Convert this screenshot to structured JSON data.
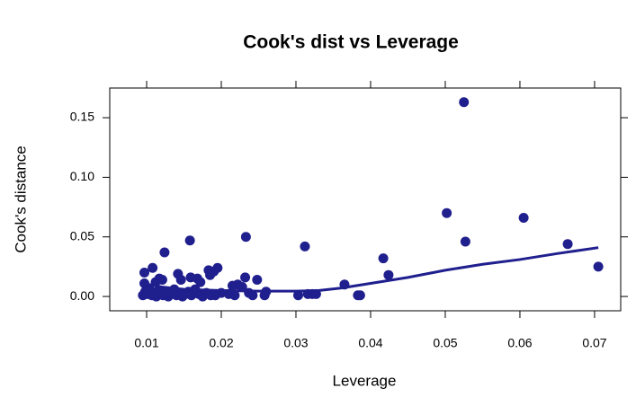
{
  "chart_data": {
    "type": "scatter",
    "title": "Cook's dist vs Leverage",
    "xlabel": "Leverage",
    "ylabel": "Cook's distance",
    "color": "#201f8e",
    "xlim": [
      0.00506,
      0.0735
    ],
    "ylim": [
      -0.012,
      0.1749
    ],
    "xticks": [
      0.01,
      0.02,
      0.03,
      0.04,
      0.05,
      0.06,
      0.07
    ],
    "yticks": [
      {
        "value": 0,
        "label": "0.00"
      },
      0.05,
      {
        "value": 0.1,
        "label": "0.10"
      },
      0.15
    ],
    "x": [
      0.0525,
      0.0502,
      0.0605,
      0.0527,
      0.0664,
      0.0705,
      0.0417,
      0.0424,
      0.0365,
      0.0383,
      0.0386,
      0.0312,
      0.0316,
      0.0322,
      0.0327,
      0.0303,
      0.0233,
      0.0158,
      0.0124,
      0.0232,
      0.0248,
      0.026,
      0.0258,
      0.0195,
      0.019,
      0.0183,
      0.0185,
      0.0142,
      0.0146,
      0.0159,
      0.0168,
      0.0172,
      0.0108,
      0.0097,
      0.0097,
      0.0112,
      0.0117,
      0.0121,
      0.0215,
      0.0222,
      0.0228,
      0.0237,
      0.0242,
      0.0218,
      0.0095,
      0.0098,
      0.0101,
      0.0104,
      0.0107,
      0.011,
      0.0113,
      0.0116,
      0.0119,
      0.0122,
      0.0126,
      0.0129,
      0.0133,
      0.0137,
      0.014,
      0.0144,
      0.0148,
      0.0152,
      0.0156,
      0.016,
      0.0165,
      0.017,
      0.0175,
      0.018,
      0.0186,
      0.0192,
      0.02,
      0.021
    ],
    "y": [
      0.163,
      0.07,
      0.066,
      0.046,
      0.044,
      0.025,
      0.032,
      0.018,
      0.01,
      0.001,
      0.001,
      0.042,
      0.002,
      0.002,
      0.002,
      0.001,
      0.05,
      0.047,
      0.037,
      0.016,
      0.014,
      0.004,
      0.001,
      0.024,
      0.021,
      0.022,
      0.018,
      0.019,
      0.014,
      0.016,
      0.015,
      0.012,
      0.024,
      0.02,
      0.011,
      0.012,
      0.015,
      0.014,
      0.009,
      0.01,
      0.008,
      0.003,
      0.001,
      0.001,
      0.001,
      0.004,
      0.002,
      0.006,
      0.001,
      0.003,
      0,
      0.005,
      0.002,
      0.001,
      0.004,
      0,
      0.002,
      0.006,
      0.001,
      0.003,
      0,
      0.002,
      0.004,
      0.001,
      0.006,
      0.002,
      0,
      0.003,
      0.001,
      0.001,
      0.003,
      0.002
    ],
    "smooth": {
      "x": [
        0.0095,
        0.012,
        0.015,
        0.02,
        0.025,
        0.03,
        0.033,
        0.036,
        0.04,
        0.045,
        0.05,
        0.055,
        0.06,
        0.065,
        0.0705
      ],
      "y": [
        0.011,
        0.008,
        0.006,
        0.005,
        0.0045,
        0.0045,
        0.005,
        0.007,
        0.011,
        0.016,
        0.022,
        0.027,
        0.031,
        0.036,
        0.041
      ]
    }
  }
}
